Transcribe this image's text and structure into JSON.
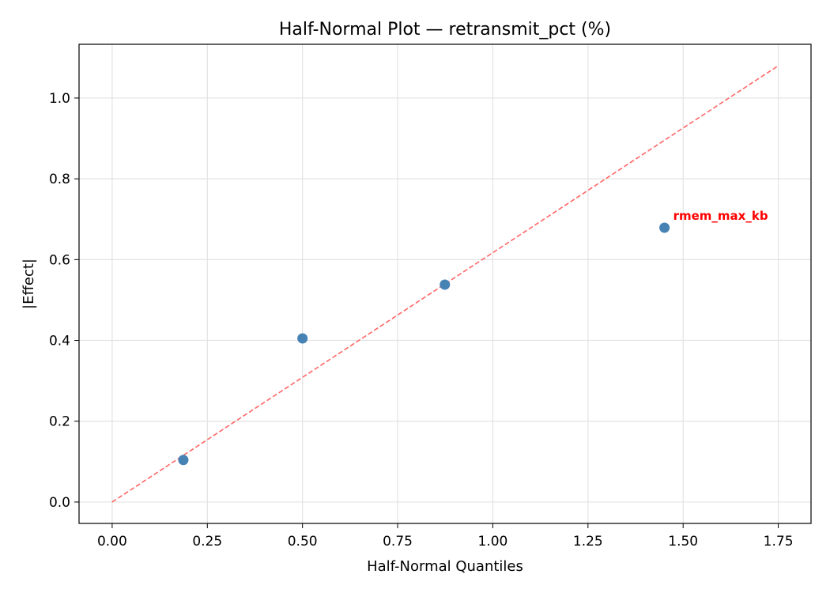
{
  "chart_data": {
    "type": "scatter",
    "title": "Half-Normal Plot — retransmit_pct (%)",
    "xlabel": "Half-Normal Quantiles",
    "ylabel": "|Effect|",
    "xlim": [
      -0.087,
      1.836
    ],
    "ylim": [
      -0.053,
      1.133
    ],
    "xticks": [
      0.0,
      0.25,
      0.5,
      0.75,
      1.0,
      1.25,
      1.5,
      1.75
    ],
    "xtick_labels": [
      "0.00",
      "0.25",
      "0.50",
      "0.75",
      "1.00",
      "1.25",
      "1.50",
      "1.75"
    ],
    "yticks": [
      0.0,
      0.2,
      0.4,
      0.6,
      0.8,
      1.0
    ],
    "ytick_labels": [
      "0.0",
      "0.2",
      "0.4",
      "0.6",
      "0.8",
      "1.0"
    ],
    "grid": true,
    "points": [
      {
        "x": 0.187,
        "y": 0.104,
        "label": ""
      },
      {
        "x": 0.5,
        "y": 0.405,
        "label": ""
      },
      {
        "x": 0.874,
        "y": 0.538,
        "label": ""
      },
      {
        "x": 1.451,
        "y": 0.679,
        "label": "rmem_max_kb"
      }
    ],
    "reference_line": {
      "x": [
        0.0,
        1.75
      ],
      "y": [
        0.0,
        1.08
      ],
      "style": "dashed"
    },
    "colors": {
      "points": "#4682b4",
      "reference_line": "#ff6666",
      "annotation": "#ff0000"
    }
  }
}
